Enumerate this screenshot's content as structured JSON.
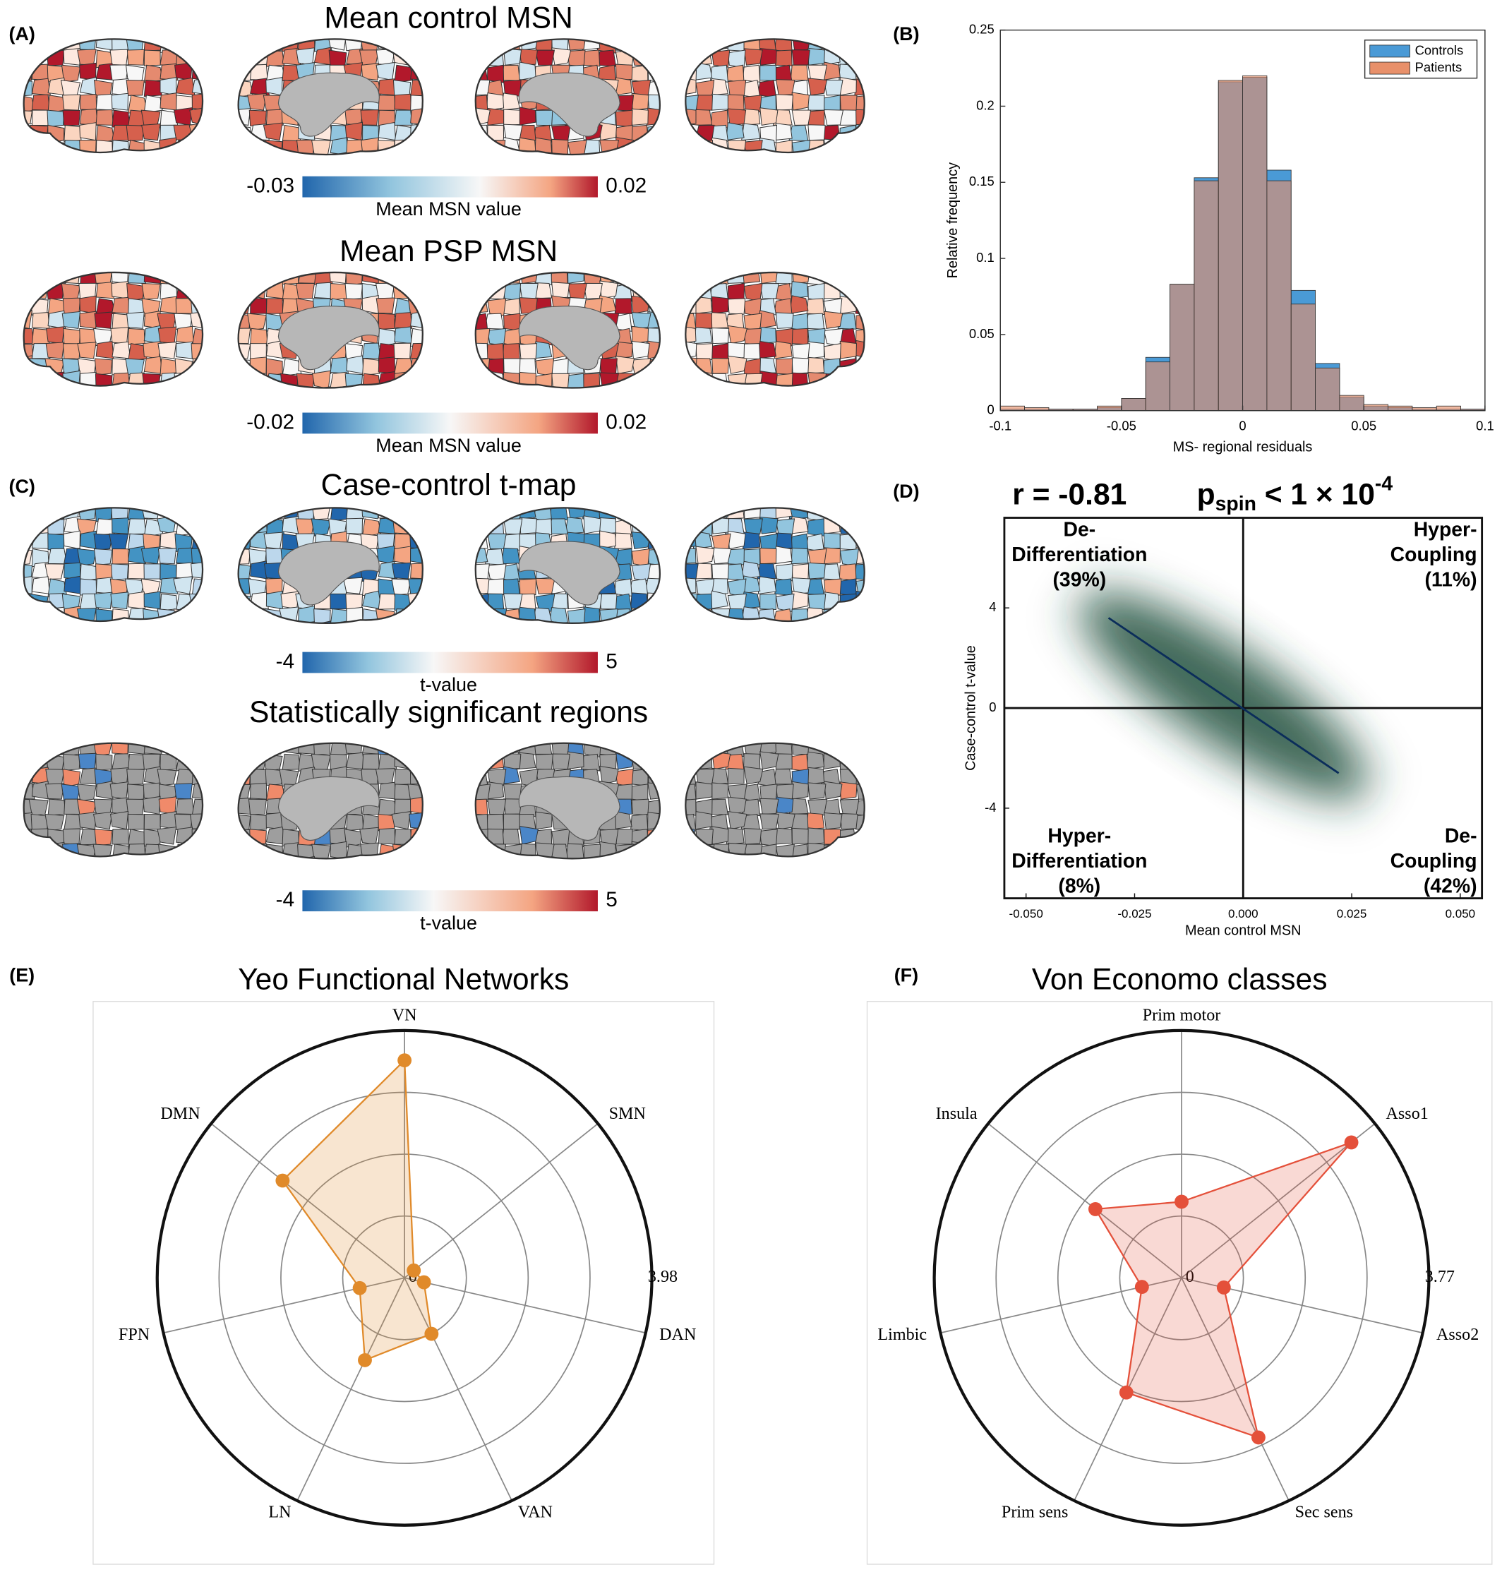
{
  "panel_labels": [
    "(A)",
    "(B)",
    "(C)",
    "(D)",
    "(E)",
    "(F)"
  ],
  "brain_maps": [
    {
      "title": "Mean control MSN",
      "colorbar": {
        "min": -0.03,
        "max": 0.02,
        "label": "Mean MSN value"
      }
    },
    {
      "title": "Mean PSP MSN",
      "colorbar": {
        "min": -0.02,
        "max": 0.02,
        "label": "Mean MSN value"
      }
    },
    {
      "title": "Case-control t-map",
      "colorbar": {
        "min": -4,
        "max": 5,
        "label": "t-value"
      }
    },
    {
      "title": "Statistically significant regions",
      "colorbar": {
        "min": -4,
        "max": 5,
        "label": "t-value"
      }
    }
  ],
  "chart_data": [
    {
      "type": "histogram",
      "xlabel": "MS- regional residuals",
      "ylabel": "Relative frequency",
      "bins": [
        -0.1,
        -0.09,
        -0.08,
        -0.07,
        -0.06,
        -0.05,
        -0.04,
        -0.03,
        -0.02,
        -0.01,
        0,
        0.01,
        0.02,
        0.03,
        0.04,
        0.05,
        0.06,
        0.07,
        0.08,
        0.09,
        0.1
      ],
      "series": [
        {
          "name": "Controls",
          "color": "#4a9ad6",
          "values": [
            0.001,
            0.001,
            0.001,
            0.001,
            0.002,
            0.008,
            0.035,
            0.083,
            0.153,
            0.216,
            0.219,
            0.158,
            0.079,
            0.031,
            0.009,
            0.003,
            0.002,
            0.001,
            0.001,
            0.001
          ]
        },
        {
          "name": "Patients",
          "color": "#e8906a",
          "values": [
            0.003,
            0.002,
            0.001,
            0.001,
            0.003,
            0.008,
            0.032,
            0.083,
            0.151,
            0.217,
            0.22,
            0.151,
            0.07,
            0.028,
            0.01,
            0.004,
            0.003,
            0.002,
            0.003,
            0.001
          ]
        }
      ],
      "xlim": [
        -0.1,
        0.1
      ],
      "xticks": [
        -0.1,
        -0.05,
        0,
        0.05,
        0.1
      ],
      "ylim": [
        0,
        0.25
      ],
      "yticks": [
        0,
        0.05,
        0.1,
        0.15,
        0.2,
        0.25
      ],
      "legend": "northeast"
    },
    {
      "type": "density",
      "title_parts": [
        "r = -0.81",
        "p",
        "spin",
        " < 1 × 10",
        "-4"
      ],
      "xlabel": "Mean control MSN",
      "ylabel": "Case-control t-value",
      "quadrant_labels": [
        [
          "De-",
          "Differentiation",
          "(39%)"
        ],
        [
          "Hyper-",
          "Coupling",
          "(11%)"
        ],
        [
          "Hyper-",
          "Differentiation",
          "(8%)"
        ],
        [
          "De-",
          "Coupling",
          "(42%)"
        ]
      ],
      "fit": {
        "x": [
          -0.031,
          0.022
        ],
        "y": [
          3.6,
          -2.6
        ],
        "color": "#0b2d5a"
      },
      "color": "#1f4f3c",
      "xlim": [
        -0.055,
        0.055
      ],
      "xticks": [
        {
          "value": -0.05,
          "label": "-0.050"
        },
        {
          "value": -0.025,
          "label": "-0.025"
        },
        {
          "value": 0,
          "label": "0.000"
        },
        {
          "value": 0.025,
          "label": "0.025"
        },
        {
          "value": 0.05,
          "label": "0.050"
        }
      ],
      "ylim": [
        -7.6,
        7.6
      ],
      "yticks": [
        -4,
        0,
        4
      ]
    },
    {
      "type": "radar",
      "title": "Yeo Functional Networks",
      "categories": [
        "VN",
        "SMN",
        "DAN",
        "VAN",
        "LN",
        "FPN",
        "DMN"
      ],
      "values": [
        3.5,
        0.19,
        0.32,
        1.0,
        1.47,
        0.74,
        2.51
      ],
      "color": "#e08a2a",
      "rlim": [
        0,
        3.98
      ],
      "rticks": [
        0,
        3.98
      ]
    },
    {
      "type": "radar",
      "title": "Von Economo classes",
      "categories": [
        "Prim motor",
        "Asso1",
        "Asso2",
        "Sec sens",
        "Prim sens",
        "Limbic",
        "Insula"
      ],
      "values": [
        1.16,
        3.31,
        0.66,
        2.7,
        1.94,
        0.62,
        1.68
      ],
      "color": "#e4503a",
      "rlim": [
        0,
        3.77
      ],
      "rticks": [
        0,
        3.77
      ]
    }
  ]
}
